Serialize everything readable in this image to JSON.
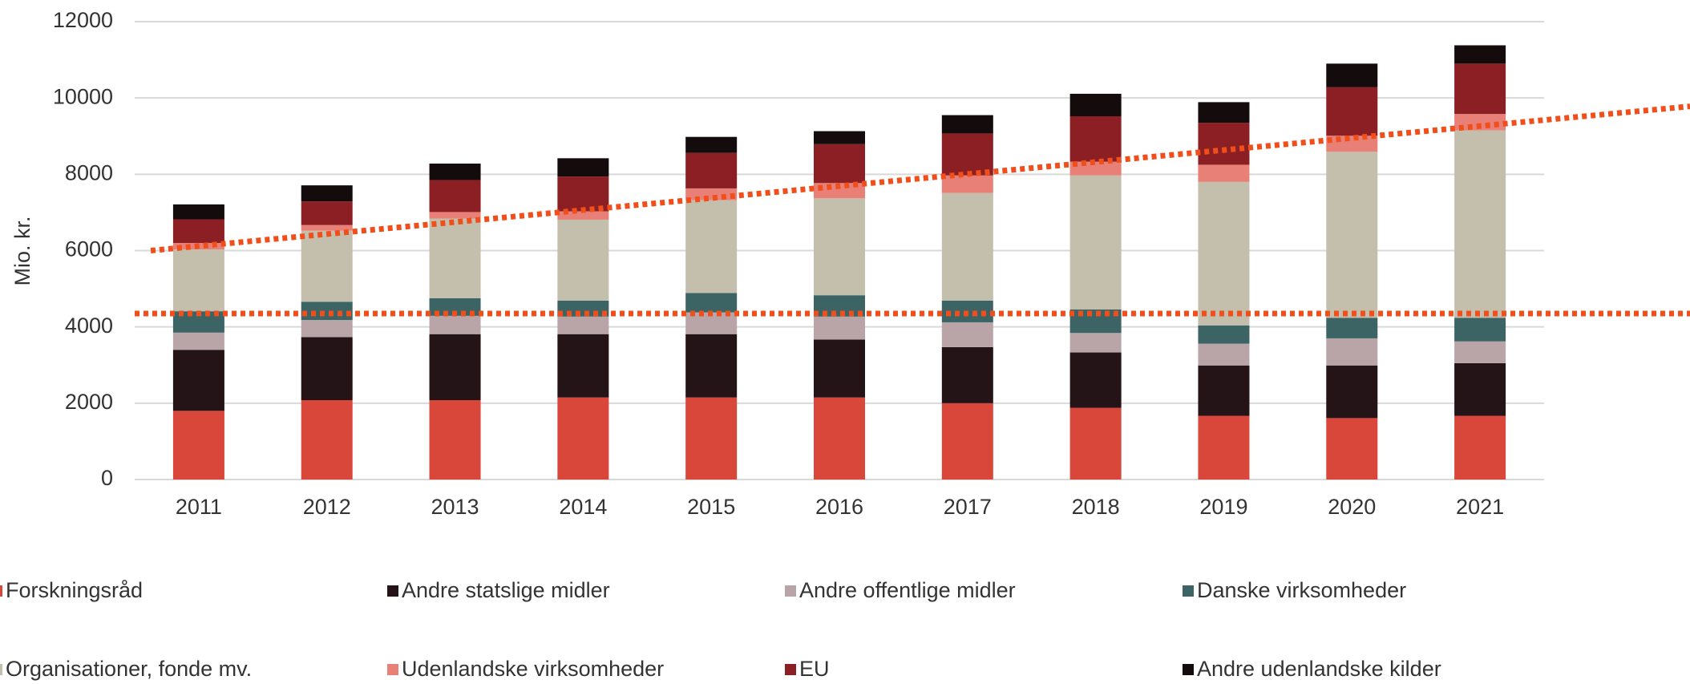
{
  "chart_data": {
    "type": "stacked_bar",
    "y_label": "Mio. kr.",
    "categories": [
      "2011",
      "2012",
      "2013",
      "2014",
      "2015",
      "2016",
      "2017",
      "2018",
      "2019",
      "2020",
      "2021"
    ],
    "series": [
      {
        "name": "Forskningsråd",
        "color": "#d9463a",
        "values": [
          1800,
          2080,
          2080,
          2150,
          2150,
          2150,
          2000,
          1880,
          1670,
          1610,
          1670
        ]
      },
      {
        "name": "Andre statslige midler",
        "color": "#241418",
        "values": [
          1600,
          1650,
          1730,
          1660,
          1660,
          1520,
          1470,
          1450,
          1320,
          1380,
          1380
        ]
      },
      {
        "name": "Andre offentlige midler",
        "color": "#b9a5a8",
        "values": [
          450,
          450,
          480,
          460,
          570,
          600,
          650,
          510,
          570,
          710,
          570
        ]
      },
      {
        "name": "Danske virksomheder",
        "color": "#3d6464",
        "values": [
          560,
          480,
          460,
          420,
          510,
          560,
          570,
          620,
          480,
          540,
          620
        ]
      },
      {
        "name": "Organisationer, fonde mv.",
        "color": "#c4bfad",
        "values": [
          1620,
          1860,
          2090,
          2120,
          2430,
          2540,
          2820,
          3510,
          3760,
          4350,
          4910
        ]
      },
      {
        "name": "Udenlandske virksomheder",
        "color": "#e98077",
        "values": [
          170,
          150,
          170,
          220,
          310,
          400,
          460,
          360,
          450,
          420,
          430
        ]
      },
      {
        "name": "EU",
        "color": "#8c1f24",
        "values": [
          620,
          620,
          840,
          910,
          930,
          1020,
          1100,
          1190,
          1100,
          1270,
          1320
        ]
      },
      {
        "name": "Andre udenlandske kilder",
        "color": "#140b0d",
        "values": [
          390,
          420,
          430,
          480,
          420,
          340,
          480,
          590,
          540,
          620,
          480
        ]
      }
    ],
    "ylim": [
      0,
      12000
    ],
    "yticks": [
      0,
      2000,
      4000,
      6000,
      8000,
      10000,
      12000
    ],
    "grid": true,
    "reference_line": {
      "value": 4350,
      "color": "#f04e1a"
    },
    "trend_line": {
      "start": 6000,
      "end": 9780,
      "color": "#f04e1a"
    }
  }
}
